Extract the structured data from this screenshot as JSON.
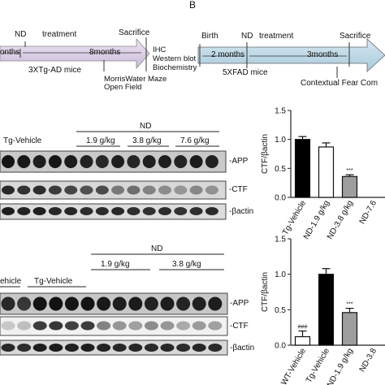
{
  "panel_b_letter": "B",
  "timeline_left": {
    "top_labels": [
      "ND",
      "treatment",
      "Sacrifice"
    ],
    "arrow_labels": [
      "onths",
      "8months"
    ],
    "model": "3XTg-AD mice",
    "endpoints": [
      "IHC",
      "Western blot",
      "Biochemistry"
    ],
    "tests": [
      "MorrisWater Maze",
      "Open Field"
    ]
  },
  "timeline_right": {
    "top_labels": [
      "Birth",
      "ND",
      "treatment",
      "Sacrifice"
    ],
    "arrow_labels": [
      "2 months",
      "3months"
    ],
    "model": "5XFAD mice",
    "tests": "Contextual  Fear Com"
  },
  "blot_top": {
    "group_header": "ND",
    "groups": [
      "Tg-Vehicle",
      "1.9 g/kg",
      "3.8 g/kg",
      "7.6 g/kg"
    ],
    "row_labels": [
      "-APP",
      "-CTF",
      "-βactin"
    ]
  },
  "blot_bottom": {
    "group_header": "ND",
    "groups": [
      "ehicle",
      "Tg-Vehicle",
      "1.9 g/kg",
      "3.8 g/kg"
    ],
    "row_labels": [
      "-APP",
      "-CTF",
      "-βactin"
    ]
  },
  "chart_data": [
    {
      "type": "bar",
      "ylabel": "CTF/βactin",
      "ylim": [
        0,
        1.5
      ],
      "yticks": [
        "0.0",
        "0.5",
        "1.0",
        "1.5"
      ],
      "categories": [
        "Tg-Vehicle",
        "ND-1.9 g/kg",
        "ND-3.8 g/kg",
        "ND-7.6"
      ],
      "values": [
        1.0,
        0.87,
        0.36,
        null
      ],
      "errors": [
        0.05,
        0.07,
        0.03,
        null
      ],
      "significance": [
        "",
        "",
        "***",
        ""
      ],
      "bar_colors": [
        "#000000",
        "#ffffff",
        "#9e9e9e",
        "#ffffff"
      ]
    },
    {
      "type": "bar",
      "ylabel": "CTF/βactin",
      "ylim": [
        0,
        1.5
      ],
      "yticks": [
        "0.0",
        "0.5",
        "1.0",
        "1.5"
      ],
      "categories": [
        "WT-Vehicle",
        "Tg-Vehicle",
        "ND-1.9 g/kg",
        "ND-3.8"
      ],
      "values": [
        0.12,
        1.0,
        0.46,
        null
      ],
      "errors": [
        0.08,
        0.08,
        0.06,
        null
      ],
      "significance": [
        "###",
        "",
        "***",
        ""
      ],
      "bar_colors": [
        "#ffffff",
        "#000000",
        "#9e9e9e",
        "#ffffff"
      ]
    }
  ]
}
